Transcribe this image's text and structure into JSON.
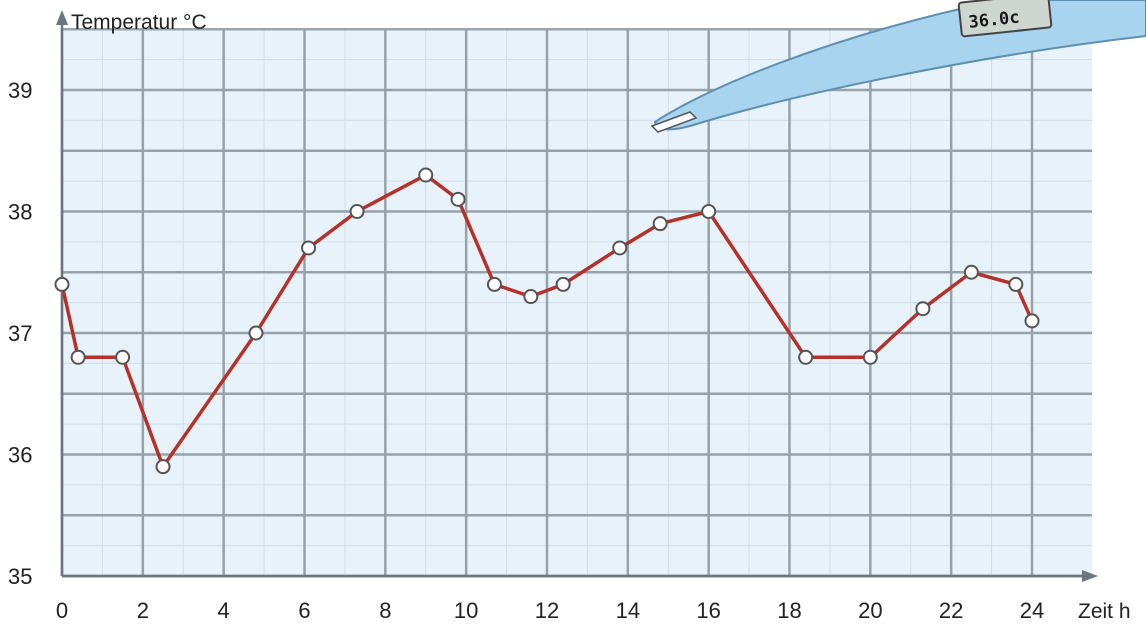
{
  "chart_data": {
    "type": "line",
    "ylabel": "Temperatur °C",
    "xlabel": "Zeit h",
    "xlim": [
      0,
      24
    ],
    "ylim": [
      35,
      39
    ],
    "xticks": [
      0,
      2,
      4,
      6,
      8,
      10,
      12,
      14,
      16,
      18,
      20,
      22,
      24
    ],
    "yticks": [
      35,
      36,
      37,
      38,
      39
    ],
    "grid": true,
    "series": [
      {
        "x": [
          0,
          0.4,
          1.5,
          2.5,
          4.8,
          6.1,
          7.3,
          9.0,
          9.8,
          10.7,
          11.6,
          12.4,
          13.8,
          14.8,
          16.0,
          18.4,
          20.0,
          21.3,
          22.5,
          23.6,
          24.0
        ],
        "y": [
          37.4,
          36.8,
          36.8,
          35.9,
          37.0,
          37.7,
          38.0,
          38.3,
          38.1,
          37.4,
          37.3,
          37.4,
          37.7,
          37.9,
          38.0,
          36.8,
          36.8,
          37.2,
          37.5,
          37.4,
          37.1
        ]
      }
    ],
    "colors": {
      "line": "#b5322a",
      "grid_minor": "#d2dde6",
      "grid_major": "#7f8a93",
      "plot_bg": "#e7f2fa",
      "marker_fill": "#ffffff",
      "marker_stroke": "#555555"
    }
  },
  "thermometer": {
    "display": "36.0c",
    "icon": "thermometer-icon"
  }
}
